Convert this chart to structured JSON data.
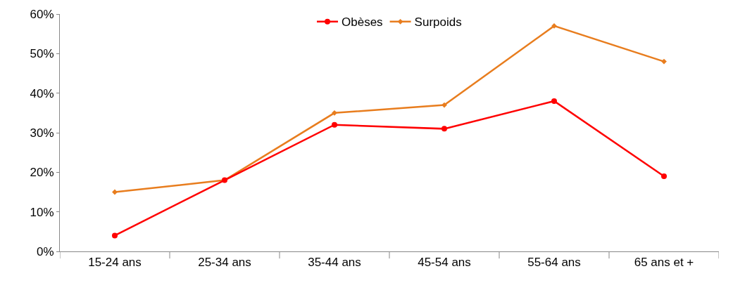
{
  "chart_data": {
    "type": "line",
    "categories": [
      "15-24 ans",
      "25-34 ans",
      "35-44 ans",
      "45-54 ans",
      "55-64 ans",
      "65 ans et +"
    ],
    "series": [
      {
        "name": "Obèses",
        "color": "#ff0000",
        "marker": "circle",
        "values": [
          4,
          18,
          32,
          31,
          38,
          19
        ]
      },
      {
        "name": "Surpoids",
        "color": "#e87d1e",
        "marker": "diamond",
        "values": [
          15,
          18,
          35,
          37,
          57,
          48
        ]
      }
    ],
    "ylim": [
      0,
      60
    ],
    "yticks": [
      {
        "value": 0,
        "label": "0%"
      },
      {
        "value": 10,
        "label": "10%"
      },
      {
        "value": 20,
        "label": "20%"
      },
      {
        "value": 30,
        "label": "30%"
      },
      {
        "value": 40,
        "label": "40%"
      },
      {
        "value": 50,
        "label": "50%"
      },
      {
        "value": 60,
        "label": "60%"
      }
    ],
    "legend": "top",
    "line_style": "solid"
  }
}
